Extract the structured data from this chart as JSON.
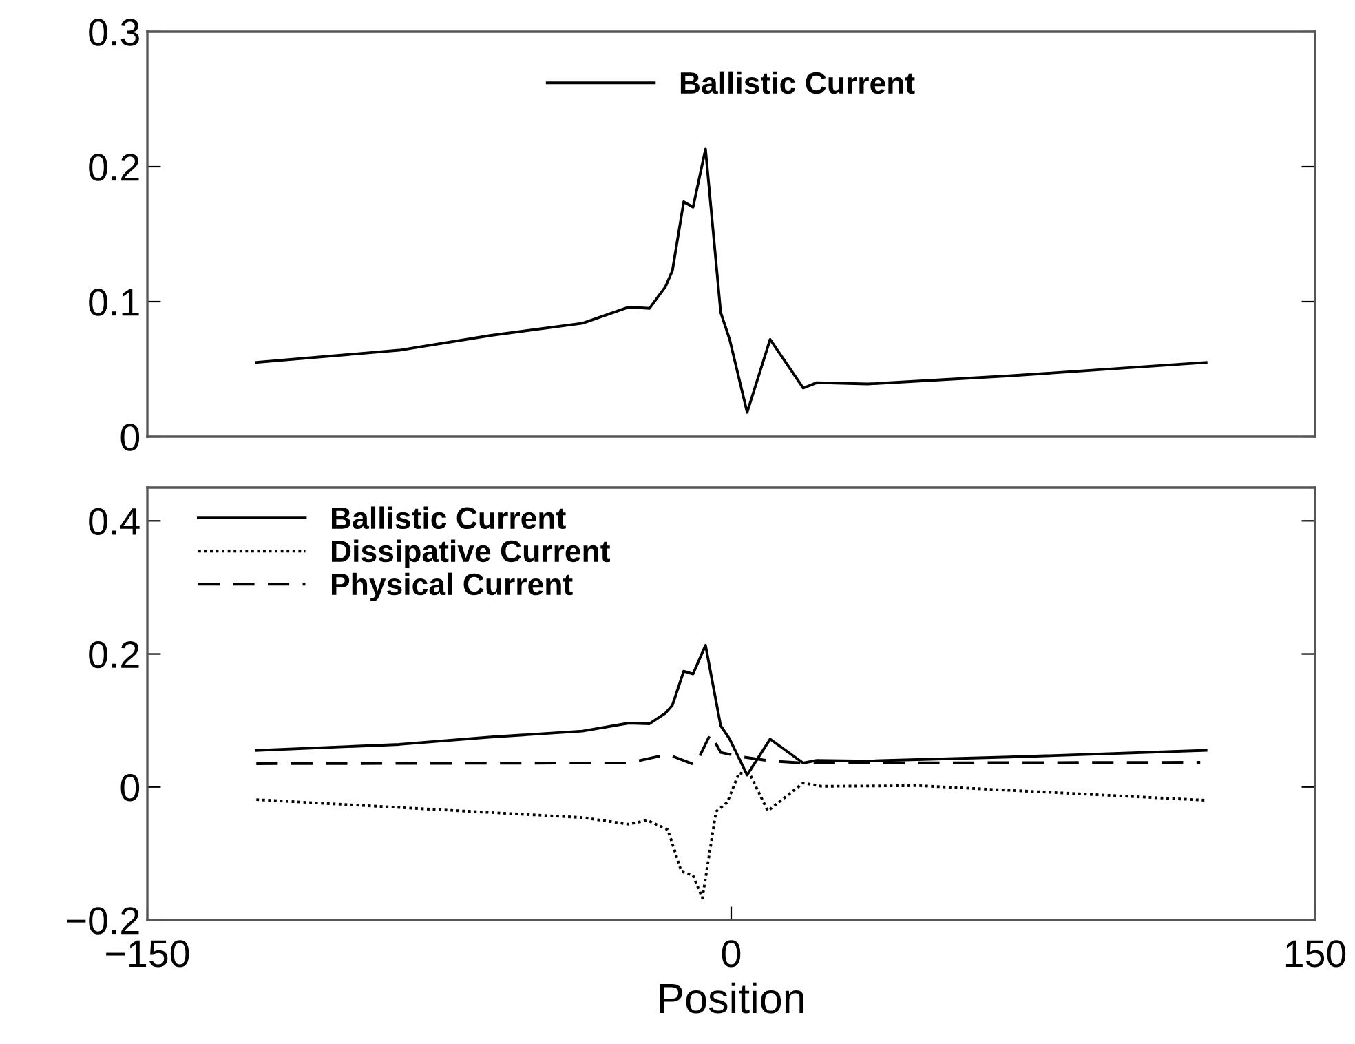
{
  "chart_data": [
    {
      "type": "line",
      "xlim": [
        -150,
        150
      ],
      "ylim": [
        0,
        0.3
      ],
      "yticks": [
        0,
        0.1,
        0.2,
        0.3
      ],
      "tick_labels": "y",
      "legend": "top",
      "series": [
        {
          "name": "Ballistic Current",
          "color": "#000000",
          "line_style": "solid",
          "x": [
            -122,
            -85.3,
            -61.7,
            -38.2,
            -26.3,
            -21,
            -16.9,
            -15.1,
            -12.2,
            -9.8,
            -6.6,
            -2.7,
            -0.4,
            4.1,
            10,
            18.5,
            22,
            35,
            71.5,
            122
          ],
          "values": [
            0.055,
            0.064,
            0.075,
            0.084,
            0.096,
            0.095,
            0.111,
            0.123,
            0.174,
            0.17,
            0.213,
            0.092,
            0.072,
            0.018,
            0.072,
            0.036,
            0.04,
            0.039,
            0.045,
            0.055
          ]
        }
      ]
    },
    {
      "type": "line",
      "xlim": [
        -150,
        150
      ],
      "xticks": [
        {
          "value": -150,
          "label": "−150"
        },
        0,
        150
      ],
      "ylim": [
        -0.2,
        0.45
      ],
      "yticks": [
        {
          "value": -0.2,
          "label": "−0.2"
        },
        0,
        0.2,
        0.4
      ],
      "xlabel": "Position",
      "legend": "top left",
      "series": [
        {
          "name": "Ballistic Current",
          "color": "#000000",
          "line_style": "solid",
          "x": [
            -122,
            -85.3,
            -61.7,
            -38.2,
            -26.3,
            -21,
            -16.9,
            -15.1,
            -12.2,
            -9.8,
            -6.6,
            -2.7,
            -0.4,
            4.1,
            10,
            18.5,
            22,
            35,
            71.5,
            122
          ],
          "values": [
            0.055,
            0.064,
            0.075,
            0.084,
            0.096,
            0.095,
            0.111,
            0.123,
            0.174,
            0.17,
            0.213,
            0.092,
            0.072,
            0.018,
            0.072,
            0.036,
            0.04,
            0.039,
            0.045,
            0.055
          ]
        },
        {
          "name": "Dissipative Current",
          "color": "#000000",
          "line_style": "dotted",
          "x": [
            -122,
            -38.1,
            -26.3,
            -21.6,
            -16.3,
            -12.8,
            -9.8,
            -7.4,
            -3.9,
            -1,
            2,
            4.9,
            9.4,
            18.5,
            23.2,
            48,
            122
          ],
          "values": [
            -0.019,
            -0.046,
            -0.056,
            -0.05,
            -0.064,
            -0.127,
            -0.133,
            -0.167,
            -0.037,
            -0.023,
            0.021,
            0.018,
            -0.036,
            0.006,
            0.001,
            0.002,
            -0.02
          ]
        },
        {
          "name": "Physical Current",
          "color": "#000000",
          "line_style": "dashed",
          "x": [
            -122,
            -26.3,
            -16.3,
            -9.2,
            -5.3,
            -2.7,
            2,
            10.2,
            18.5,
            120.5
          ],
          "values": [
            0.035,
            0.036,
            0.049,
            0.033,
            0.08,
            0.052,
            0.046,
            0.039,
            0.036,
            0.037
          ]
        }
      ]
    }
  ]
}
